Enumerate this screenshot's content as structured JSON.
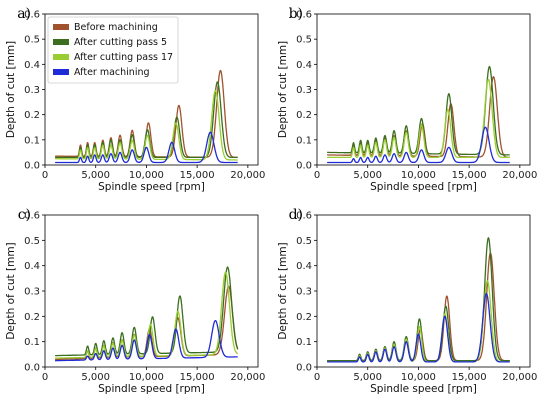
{
  "figure": {
    "legend": [
      "Before machining",
      "After cutting pass 5",
      "After cutting pass 17",
      "After machining"
    ],
    "colors": {
      "Before machining": "#a0522d",
      "After cutting pass 5": "#3b6e1e",
      "After cutting pass 17": "#9acd32",
      "After machining": "#1f2bd6"
    }
  },
  "chart_data": [
    {
      "panel_label": "a)",
      "type": "line",
      "xlabel": "Spindle speed [rpm]",
      "ylabel": "Depth of cut [mm]",
      "xlim": [
        0,
        21000
      ],
      "ylim": [
        0,
        0.6
      ],
      "xticks": [
        "0",
        "5,000",
        "10,000",
        "15,000",
        "20,000"
      ],
      "yticks": [
        "0.0",
        "0.1",
        "0.2",
        "0.3",
        "0.4",
        "0.5",
        "0.6"
      ],
      "legend_position": "top-left",
      "series": [
        {
          "name": "Before machining",
          "base": 0.035,
          "end": 0.03,
          "peaks": [
            [
              3500,
              0.08
            ],
            [
              4200,
              0.09
            ],
            [
              4900,
              0.09
            ],
            [
              5700,
              0.1
            ],
            [
              6500,
              0.11
            ],
            [
              7400,
              0.12
            ],
            [
              8600,
              0.14
            ],
            [
              10200,
              0.17
            ],
            [
              13200,
              0.24
            ],
            [
              17300,
              0.38
            ]
          ]
        },
        {
          "name": "After cutting pass 5",
          "base": 0.03,
          "end": 0.03,
          "peaks": [
            [
              3500,
              0.07
            ],
            [
              4200,
              0.08
            ],
            [
              4900,
              0.08
            ],
            [
              5700,
              0.09
            ],
            [
              6500,
              0.1
            ],
            [
              7400,
              0.1
            ],
            [
              8600,
              0.12
            ],
            [
              10100,
              0.14
            ],
            [
              13000,
              0.19
            ],
            [
              17000,
              0.33
            ]
          ]
        },
        {
          "name": "After cutting pass 17",
          "base": 0.025,
          "end": 0.02,
          "peaks": [
            [
              3500,
              0.06
            ],
            [
              4200,
              0.07
            ],
            [
              4900,
              0.07
            ],
            [
              5700,
              0.08
            ],
            [
              6500,
              0.08
            ],
            [
              7400,
              0.09
            ],
            [
              8600,
              0.1
            ],
            [
              10100,
              0.12
            ],
            [
              12900,
              0.17
            ],
            [
              16800,
              0.3
            ]
          ]
        },
        {
          "name": "After machining",
          "base": 0.01,
          "end": 0.01,
          "peaks": [
            [
              3500,
              0.03
            ],
            [
              4200,
              0.035
            ],
            [
              4900,
              0.04
            ],
            [
              5700,
              0.04
            ],
            [
              6500,
              0.045
            ],
            [
              7400,
              0.05
            ],
            [
              8600,
              0.06
            ],
            [
              10000,
              0.07
            ],
            [
              12500,
              0.09
            ],
            [
              16300,
              0.13
            ]
          ]
        }
      ]
    },
    {
      "panel_label": "b)",
      "type": "line",
      "xlabel": "Spindle speed [rpm]",
      "ylabel": "Depth of cut [mm]",
      "xlim": [
        0,
        21000
      ],
      "ylim": [
        0,
        0.6
      ],
      "xticks": [
        "0",
        "5,000",
        "10,000",
        "15,000",
        "20,000"
      ],
      "yticks": [
        "0.0",
        "0.1",
        "0.2",
        "0.3",
        "0.4",
        "0.5",
        "0.6"
      ],
      "series": [
        {
          "name": "Before machining",
          "base": 0.04,
          "end": 0.03,
          "peaks": [
            [
              3600,
              0.08
            ],
            [
              4300,
              0.09
            ],
            [
              5000,
              0.09
            ],
            [
              5800,
              0.1
            ],
            [
              6700,
              0.11
            ],
            [
              7600,
              0.12
            ],
            [
              8800,
              0.14
            ],
            [
              10400,
              0.17
            ],
            [
              13200,
              0.25
            ],
            [
              17400,
              0.36
            ]
          ]
        },
        {
          "name": "After cutting pass 5",
          "base": 0.05,
          "end": 0.04,
          "peaks": [
            [
              3600,
              0.09
            ],
            [
              4300,
              0.1
            ],
            [
              5000,
              0.1
            ],
            [
              5800,
              0.11
            ],
            [
              6700,
              0.12
            ],
            [
              7600,
              0.14
            ],
            [
              8800,
              0.16
            ],
            [
              10300,
              0.19
            ],
            [
              13000,
              0.29
            ],
            [
              17000,
              0.4
            ]
          ]
        },
        {
          "name": "After cutting pass 17",
          "base": 0.03,
          "end": 0.03,
          "peaks": [
            [
              3600,
              0.07
            ],
            [
              4300,
              0.08
            ],
            [
              5000,
              0.08
            ],
            [
              5800,
              0.09
            ],
            [
              6700,
              0.1
            ],
            [
              7600,
              0.11
            ],
            [
              8800,
              0.13
            ],
            [
              10300,
              0.16
            ],
            [
              12900,
              0.22
            ],
            [
              16900,
              0.34
            ]
          ]
        },
        {
          "name": "After machining",
          "base": 0.01,
          "end": 0.01,
          "peaks": [
            [
              3600,
              0.025
            ],
            [
              4300,
              0.03
            ],
            [
              5000,
              0.03
            ],
            [
              5800,
              0.035
            ],
            [
              6700,
              0.04
            ],
            [
              7600,
              0.045
            ],
            [
              8800,
              0.05
            ],
            [
              10300,
              0.06
            ],
            [
              13000,
              0.07
            ],
            [
              16600,
              0.15
            ]
          ]
        }
      ]
    },
    {
      "panel_label": "c)",
      "type": "line",
      "xlabel": "Spindle speed [rpm]",
      "ylabel": "Depth of cut [mm]",
      "xlim": [
        0,
        21000
      ],
      "ylim": [
        0,
        0.6
      ],
      "xticks": [
        "0",
        "5,000",
        "10,000",
        "15,000",
        "20,000"
      ],
      "yticks": [
        "0.0",
        "0.1",
        "0.2",
        "0.3",
        "0.4",
        "0.5",
        "0.6"
      ],
      "series": [
        {
          "name": "Before machining",
          "base": 0.03,
          "end": 0.05,
          "peaks": [
            [
              4200,
              0.06
            ],
            [
              5000,
              0.07
            ],
            [
              5800,
              0.08
            ],
            [
              6700,
              0.09
            ],
            [
              7600,
              0.1
            ],
            [
              8800,
              0.12
            ],
            [
              10300,
              0.14
            ],
            [
              13100,
              0.18
            ],
            [
              18100,
              0.3
            ]
          ]
        },
        {
          "name": "After cutting pass 5",
          "base": 0.045,
          "end": 0.06,
          "peaks": [
            [
              4200,
              0.08
            ],
            [
              5000,
              0.09
            ],
            [
              5800,
              0.1
            ],
            [
              6700,
              0.11
            ],
            [
              7600,
              0.13
            ],
            [
              8800,
              0.15
            ],
            [
              10600,
              0.19
            ],
            [
              13300,
              0.27
            ],
            [
              18000,
              0.38
            ]
          ]
        },
        {
          "name": "After cutting pass 17",
          "base": 0.035,
          "end": 0.05,
          "peaks": [
            [
              4200,
              0.06
            ],
            [
              5000,
              0.07
            ],
            [
              5800,
              0.08
            ],
            [
              6700,
              0.09
            ],
            [
              7600,
              0.1
            ],
            [
              8800,
              0.12
            ],
            [
              10400,
              0.16
            ],
            [
              13100,
              0.21
            ],
            [
              17800,
              0.36
            ]
          ]
        },
        {
          "name": "After machining",
          "base": 0.025,
          "end": 0.04,
          "peaks": [
            [
              4200,
              0.04
            ],
            [
              5000,
              0.05
            ],
            [
              5800,
              0.06
            ],
            [
              6700,
              0.07
            ],
            [
              7600,
              0.08
            ],
            [
              8800,
              0.1
            ],
            [
              10300,
              0.12
            ],
            [
              12900,
              0.14
            ],
            [
              16800,
              0.17
            ]
          ]
        }
      ]
    },
    {
      "panel_label": "d)",
      "type": "line",
      "xlabel": "Spindle speed [rpm]",
      "ylabel": "Depth of cut [mm]",
      "xlim": [
        0,
        21000
      ],
      "ylim": [
        0,
        0.6
      ],
      "xticks": [
        "0",
        "5,000",
        "10,000",
        "15,000",
        "20,000"
      ],
      "yticks": [
        "0.0",
        "0.1",
        "0.2",
        "0.3",
        "0.4",
        "0.5",
        "0.6"
      ],
      "series": [
        {
          "name": "Before machining",
          "base": 0.025,
          "end": 0.025,
          "peaks": [
            [
              4200,
              0.05
            ],
            [
              5000,
              0.06
            ],
            [
              5800,
              0.07
            ],
            [
              6700,
              0.08
            ],
            [
              7600,
              0.09
            ],
            [
              8800,
              0.1
            ],
            [
              10200,
              0.15
            ],
            [
              12800,
              0.28
            ],
            [
              17100,
              0.45
            ]
          ]
        },
        {
          "name": "After cutting pass 5",
          "base": 0.025,
          "end": 0.025,
          "peaks": [
            [
              4200,
              0.05
            ],
            [
              5000,
              0.06
            ],
            [
              5800,
              0.07
            ],
            [
              6700,
              0.08
            ],
            [
              7600,
              0.1
            ],
            [
              8800,
              0.12
            ],
            [
              10100,
              0.19
            ],
            [
              12700,
              0.24
            ],
            [
              16900,
              0.51
            ]
          ]
        },
        {
          "name": "After cutting pass 17",
          "base": 0.02,
          "end": 0.02,
          "peaks": [
            [
              4200,
              0.045
            ],
            [
              5000,
              0.055
            ],
            [
              5800,
              0.065
            ],
            [
              6700,
              0.075
            ],
            [
              7600,
              0.09
            ],
            [
              8800,
              0.11
            ],
            [
              10100,
              0.16
            ],
            [
              12600,
              0.21
            ],
            [
              16800,
              0.34
            ]
          ]
        },
        {
          "name": "After machining",
          "base": 0.02,
          "end": 0.02,
          "peaks": [
            [
              4200,
              0.04
            ],
            [
              5000,
              0.05
            ],
            [
              5800,
              0.06
            ],
            [
              6700,
              0.07
            ],
            [
              7600,
              0.08
            ],
            [
              8800,
              0.1
            ],
            [
              10000,
              0.13
            ],
            [
              12600,
              0.2
            ],
            [
              16700,
              0.29
            ]
          ]
        }
      ]
    }
  ]
}
